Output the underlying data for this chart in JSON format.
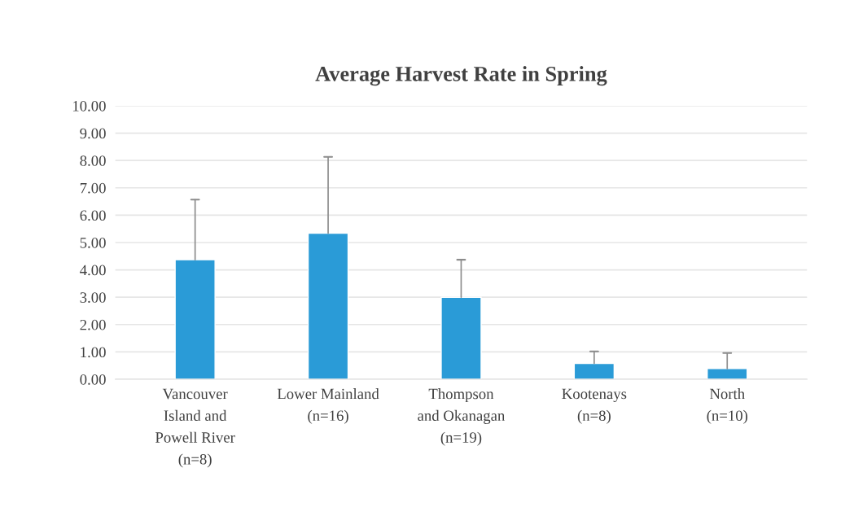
{
  "chart_data": {
    "type": "bar",
    "title": "Average Harvest Rate in Spring",
    "categories": [
      "Vancouver\nIsland and\nPowell River\n(n=8)",
      "Lower Mainland\n(n=16)",
      "Thompson\nand Okanagan\n(n=19)",
      "Kootenays\n(n=8)",
      "North\n(n=10)"
    ],
    "values": [
      4.37,
      5.34,
      3.0,
      0.58,
      0.39
    ],
    "errors": [
      [
        4.37,
        6.57
      ],
      [
        5.34,
        8.13
      ],
      [
        3.0,
        4.37
      ],
      [
        0.58,
        1.02
      ],
      [
        0.39,
        0.96
      ]
    ],
    "color": "#2a9bd7",
    "ylim": [
      0,
      10
    ],
    "yticks": [
      {
        "value": 0,
        "label": "0.00"
      },
      {
        "value": 1,
        "label": "1.00"
      },
      {
        "value": 2,
        "label": "2.00"
      },
      {
        "value": 3,
        "label": "3.00"
      },
      {
        "value": 4,
        "label": "4.00"
      },
      {
        "value": 5,
        "label": "5.00"
      },
      {
        "value": 6,
        "label": "6.00"
      },
      {
        "value": 7,
        "label": "7.00"
      },
      {
        "value": 8,
        "label": "8.00"
      },
      {
        "value": 9,
        "label": "9.00"
      },
      {
        "value": 10,
        "label": "10.00"
      }
    ],
    "grid": "y"
  }
}
